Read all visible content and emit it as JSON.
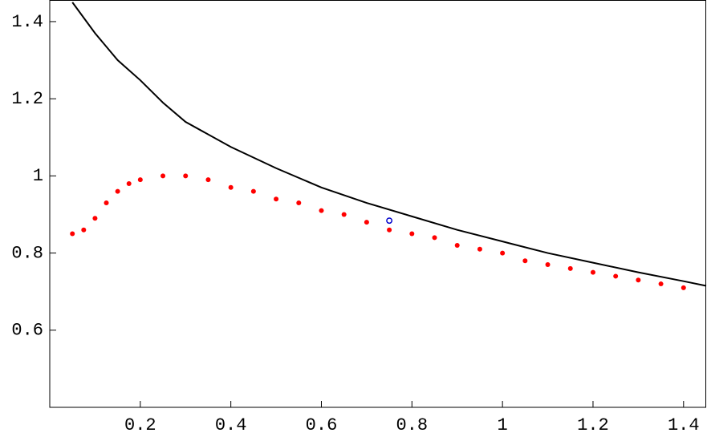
{
  "chart_data": {
    "type": "line",
    "xlim": [
      0,
      1.45
    ],
    "ylim": [
      0.4,
      1.456
    ],
    "xticks": [
      0.2,
      0.4,
      0.6,
      0.8,
      1,
      1.2,
      1.4
    ],
    "yticks": [
      0.6,
      0.8,
      1,
      1.2,
      1.4
    ],
    "series": [
      {
        "style": "line",
        "color": "#000000",
        "x": [
          0.05,
          0.1,
          0.15,
          0.2,
          0.25,
          0.3,
          0.4,
          0.5,
          0.6,
          0.7,
          0.8,
          0.9,
          1.0,
          1.1,
          1.2,
          1.3,
          1.4,
          1.45
        ],
        "values": [
          1.45,
          1.37,
          1.3,
          1.248,
          1.19,
          1.14,
          1.075,
          1.02,
          0.97,
          0.93,
          0.895,
          0.86,
          0.83,
          0.8,
          0.775,
          0.75,
          0.727,
          0.715
        ]
      },
      {
        "style": "dots",
        "color": "#ff0000",
        "x": [
          0.05,
          0.075,
          0.1,
          0.125,
          0.15,
          0.175,
          0.2,
          0.25,
          0.3,
          0.35,
          0.4,
          0.45,
          0.5,
          0.55,
          0.6,
          0.65,
          0.7,
          0.75,
          0.8,
          0.85,
          0.9,
          0.95,
          1.0,
          1.05,
          1.1,
          1.15,
          1.2,
          1.25,
          1.3,
          1.35,
          1.4
        ],
        "values": [
          0.85,
          0.86,
          0.89,
          0.93,
          0.96,
          0.98,
          0.99,
          1.0,
          1.0,
          0.99,
          0.97,
          0.96,
          0.94,
          0.93,
          0.91,
          0.9,
          0.88,
          0.86,
          0.85,
          0.84,
          0.82,
          0.81,
          0.8,
          0.78,
          0.77,
          0.76,
          0.75,
          0.74,
          0.73,
          0.72,
          0.71
        ]
      },
      {
        "style": "open-circle",
        "color": "#0000cc",
        "x": [
          0.75
        ],
        "values": [
          0.884
        ]
      }
    ]
  }
}
